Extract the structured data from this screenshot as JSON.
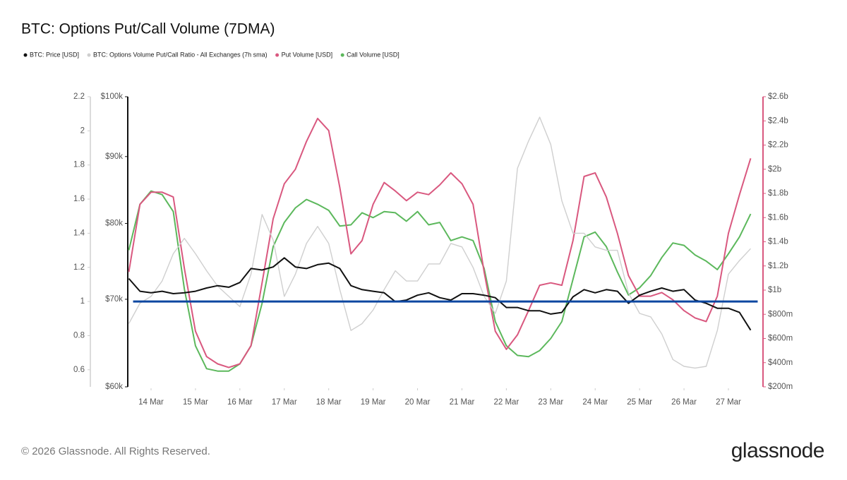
{
  "chart_data": {
    "type": "line",
    "title": "BTC: Options Put/Call Volume (7DMA)",
    "x": [
      13.5,
      13.75,
      14,
      14.25,
      14.5,
      14.75,
      15,
      15.25,
      15.5,
      15.75,
      16,
      16.25,
      16.5,
      16.75,
      17,
      17.25,
      17.5,
      17.75,
      18,
      18.25,
      18.5,
      18.75,
      19,
      19.25,
      19.5,
      19.75,
      20,
      20.25,
      20.5,
      20.75,
      21,
      21.25,
      21.5,
      21.75,
      22,
      22.25,
      22.5,
      22.75,
      23,
      23.25,
      23.5,
      23.75,
      24,
      24.25,
      24.5,
      24.75,
      25,
      25.25,
      25.5,
      25.75,
      26,
      26.25,
      26.5,
      26.75,
      27,
      27.25,
      27.5
    ],
    "xlim": [
      13.5,
      27.75
    ],
    "xticks": [
      {
        "value": 14,
        "label": "14 Mar"
      },
      {
        "value": 15,
        "label": "15 Mar"
      },
      {
        "value": 16,
        "label": "16 Mar"
      },
      {
        "value": 17,
        "label": "17 Mar"
      },
      {
        "value": 18,
        "label": "18 Mar"
      },
      {
        "value": 19,
        "label": "19 Mar"
      },
      {
        "value": 20,
        "label": "20 Mar"
      },
      {
        "value": 21,
        "label": "21 Mar"
      },
      {
        "value": 22,
        "label": "22 Mar"
      },
      {
        "value": 23,
        "label": "23 Mar"
      },
      {
        "value": 24,
        "label": "24 Mar"
      },
      {
        "value": 25,
        "label": "25 Mar"
      },
      {
        "value": 26,
        "label": "26 Mar"
      },
      {
        "value": 27,
        "label": "27 Mar"
      }
    ],
    "ylim": [
      0.5,
      2.2
    ],
    "yticks": [
      0.6,
      0.8,
      1,
      1.2,
      1.4,
      1.6,
      1.8,
      2,
      2.2
    ],
    "y3lim": [
      60000,
      100000
    ],
    "y3scale": "log",
    "y3ticks": [
      {
        "value": 60000,
        "label": "$60k"
      },
      {
        "value": 70000,
        "label": "$70k"
      },
      {
        "value": 80000,
        "label": "$80k"
      },
      {
        "value": 90000,
        "label": "$90k"
      },
      {
        "value": 100000,
        "label": "$100k"
      }
    ],
    "y2lim": [
      200000000,
      2600000000
    ],
    "y2ticks": [
      {
        "value": 200000000,
        "label": "$200m"
      },
      {
        "value": 400000000,
        "label": "$400m"
      },
      {
        "value": 600000000,
        "label": "$600m"
      },
      {
        "value": 800000000,
        "label": "$800m"
      },
      {
        "value": 1000000000,
        "label": "$1b"
      },
      {
        "value": 1200000000,
        "label": "$1.2b"
      },
      {
        "value": 1400000000,
        "label": "$1.4b"
      },
      {
        "value": 1600000000,
        "label": "$1.6b"
      },
      {
        "value": 1800000000,
        "label": "$1.8b"
      },
      {
        "value": 2000000000,
        "label": "$2b"
      },
      {
        "value": 2200000000,
        "label": "$2.2b"
      },
      {
        "value": 2400000000,
        "label": "$2.4b"
      },
      {
        "value": 2600000000,
        "label": "$2.6b"
      }
    ],
    "hlines": [
      {
        "value": 1,
        "axis": "y",
        "color": "#0d47a1"
      }
    ],
    "series": [
      {
        "name": "BTC: Price [USD]",
        "color": "#111111",
        "axis": "y3",
        "values": [
          72600,
          71000,
          70800,
          71000,
          70700,
          70800,
          71000,
          71400,
          71700,
          71500,
          72100,
          73900,
          73700,
          74100,
          75300,
          74100,
          73900,
          74400,
          74600,
          73900,
          71700,
          71200,
          71000,
          70800,
          69700,
          69900,
          70500,
          70800,
          70200,
          69900,
          70700,
          70700,
          70500,
          70200,
          69000,
          69000,
          68600,
          68600,
          68200,
          68400,
          70300,
          71200,
          70800,
          71200,
          71000,
          69500,
          70500,
          71000,
          71400,
          71000,
          71200,
          69900,
          69500,
          68900,
          68900,
          68400,
          66300
        ]
      },
      {
        "name": "BTC: Options Volume Put/Call Ratio - All Exchanges (7h sma)",
        "color": "#cfcfcf",
        "axis": "y",
        "values": [
          0.87,
          0.99,
          1.03,
          1.12,
          1.28,
          1.37,
          1.28,
          1.18,
          1.09,
          1.03,
          0.97,
          1.16,
          1.51,
          1.36,
          1.03,
          1.16,
          1.34,
          1.44,
          1.34,
          1.07,
          0.83,
          0.87,
          0.95,
          1.07,
          1.18,
          1.12,
          1.12,
          1.22,
          1.22,
          1.34,
          1.32,
          1.2,
          1.03,
          0.93,
          1.12,
          1.78,
          1.94,
          2.08,
          1.92,
          1.59,
          1.4,
          1.4,
          1.32,
          1.3,
          1.3,
          1.05,
          0.93,
          0.91,
          0.81,
          0.66,
          0.62,
          0.61,
          0.62,
          0.83,
          1.16,
          1.24,
          1.31
        ]
      },
      {
        "name": "Put Volume [USD]",
        "color": "#d9587f",
        "axis": "y2",
        "values": [
          1150000000,
          1710000000,
          1810000000,
          1810000000,
          1770000000,
          1180000000,
          660000000,
          450000000,
          390000000,
          360000000,
          390000000,
          540000000,
          1060000000,
          1590000000,
          1880000000,
          2000000000,
          2230000000,
          2420000000,
          2320000000,
          1850000000,
          1300000000,
          1410000000,
          1710000000,
          1890000000,
          1820000000,
          1740000000,
          1810000000,
          1790000000,
          1870000000,
          1970000000,
          1880000000,
          1710000000,
          1150000000,
          660000000,
          510000000,
          630000000,
          830000000,
          1040000000,
          1060000000,
          1040000000,
          1410000000,
          1940000000,
          1970000000,
          1770000000,
          1470000000,
          1120000000,
          950000000,
          950000000,
          980000000,
          920000000,
          830000000,
          770000000,
          740000000,
          950000000,
          1470000000,
          1790000000,
          2090000000
        ]
      },
      {
        "name": "Call Volume [USD]",
        "color": "#5cb85c",
        "axis": "y2",
        "values": [
          1330000000,
          1710000000,
          1820000000,
          1790000000,
          1650000000,
          1010000000,
          540000000,
          350000000,
          330000000,
          330000000,
          390000000,
          540000000,
          890000000,
          1360000000,
          1560000000,
          1680000000,
          1750000000,
          1710000000,
          1660000000,
          1530000000,
          1540000000,
          1640000000,
          1600000000,
          1650000000,
          1640000000,
          1570000000,
          1650000000,
          1540000000,
          1560000000,
          1410000000,
          1440000000,
          1410000000,
          1180000000,
          740000000,
          540000000,
          460000000,
          450000000,
          500000000,
          600000000,
          740000000,
          1090000000,
          1440000000,
          1480000000,
          1360000000,
          1150000000,
          960000000,
          1020000000,
          1120000000,
          1270000000,
          1390000000,
          1370000000,
          1290000000,
          1240000000,
          1170000000,
          1300000000,
          1440000000,
          1630000000
        ]
      }
    ]
  },
  "footer": {
    "copyright": "© 2026 Glassnode. All Rights Reserved.",
    "brand": "glassnode"
  }
}
